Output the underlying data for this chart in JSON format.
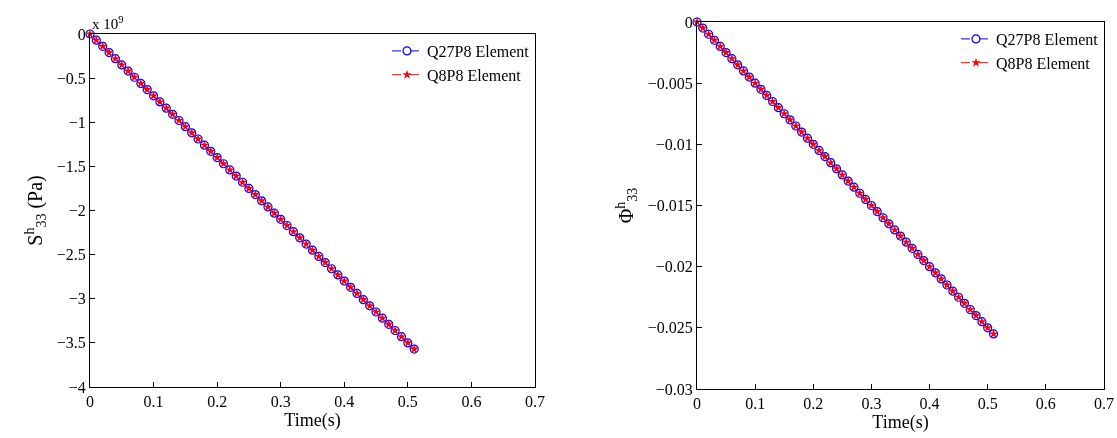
{
  "chart_data": [
    {
      "type": "line",
      "xlabel": "Time(s)",
      "ylabel": "S$^{h}$$_{33}$ (Pa)",
      "annotations": [
        "x 10$^{9}$"
      ],
      "x": [
        0,
        0.01,
        0.02,
        0.03,
        0.04,
        0.05,
        0.06,
        0.07,
        0.08,
        0.09,
        0.1,
        0.11,
        0.12,
        0.13,
        0.14,
        0.15,
        0.16,
        0.17,
        0.18,
        0.19,
        0.2,
        0.21,
        0.22,
        0.23,
        0.24,
        0.25,
        0.26,
        0.27,
        0.28,
        0.29,
        0.3,
        0.31,
        0.32,
        0.33,
        0.34,
        0.35,
        0.36,
        0.37,
        0.38,
        0.39,
        0.4,
        0.41,
        0.42,
        0.43,
        0.44,
        0.45,
        0.46,
        0.47,
        0.48,
        0.49,
        0.5,
        0.51
      ],
      "series": [
        {
          "name": "Q27P8 Element",
          "color": "#0000ff",
          "marker": "circle",
          "values": [
            0,
            -0.07,
            -0.14,
            -0.21,
            -0.28,
            -0.35,
            -0.42,
            -0.49,
            -0.56,
            -0.63,
            -0.7,
            -0.77,
            -0.84,
            -0.91,
            -0.98,
            -1.05,
            -1.12,
            -1.19,
            -1.26,
            -1.33,
            -1.4,
            -1.47,
            -1.54,
            -1.61,
            -1.68,
            -1.75,
            -1.82,
            -1.89,
            -1.96,
            -2.03,
            -2.1,
            -2.17,
            -2.24,
            -2.31,
            -2.38,
            -2.45,
            -2.52,
            -2.59,
            -2.66,
            -2.73,
            -2.8,
            -2.87,
            -2.94,
            -3.01,
            -3.08,
            -3.15,
            -3.22,
            -3.29,
            -3.36,
            -3.43,
            -3.5,
            -3.57
          ]
        },
        {
          "name": "Q8P8 Element",
          "color": "#ff0000",
          "marker": "star",
          "values": [
            0,
            -0.07,
            -0.14,
            -0.21,
            -0.28,
            -0.35,
            -0.42,
            -0.49,
            -0.56,
            -0.63,
            -0.7,
            -0.77,
            -0.84,
            -0.91,
            -0.98,
            -1.05,
            -1.12,
            -1.19,
            -1.26,
            -1.33,
            -1.4,
            -1.47,
            -1.54,
            -1.61,
            -1.68,
            -1.75,
            -1.82,
            -1.89,
            -1.96,
            -2.03,
            -2.1,
            -2.17,
            -2.24,
            -2.31,
            -2.38,
            -2.45,
            -2.52,
            -2.59,
            -2.66,
            -2.73,
            -2.8,
            -2.87,
            -2.94,
            -3.01,
            -3.08,
            -3.15,
            -3.22,
            -3.29,
            -3.36,
            -3.43,
            -3.5,
            -3.57
          ]
        }
      ],
      "xlim": [
        0,
        0.7
      ],
      "xticks": [
        0,
        0.1,
        0.2,
        0.3,
        0.4,
        0.5,
        0.6,
        0.7
      ],
      "ylim": [
        -4,
        0
      ],
      "yticks": [
        -4,
        -3.5,
        -3,
        -2.5,
        -2,
        -1.5,
        -1,
        -0.5,
        0
      ],
      "line_style": "dashed",
      "legend": "top right",
      "grid": false
    },
    {
      "type": "line",
      "xlabel": "Time(s)",
      "ylabel": "Φ$^{h}$$_{33}$",
      "x": [
        0,
        0.01,
        0.02,
        0.03,
        0.04,
        0.05,
        0.06,
        0.07,
        0.08,
        0.09,
        0.1,
        0.11,
        0.12,
        0.13,
        0.14,
        0.15,
        0.16,
        0.17,
        0.18,
        0.19,
        0.2,
        0.21,
        0.22,
        0.23,
        0.24,
        0.25,
        0.26,
        0.27,
        0.28,
        0.29,
        0.3,
        0.31,
        0.32,
        0.33,
        0.34,
        0.35,
        0.36,
        0.37,
        0.38,
        0.39,
        0.4,
        0.41,
        0.42,
        0.43,
        0.44,
        0.45,
        0.46,
        0.47,
        0.48,
        0.49,
        0.5,
        0.51
      ],
      "series": [
        {
          "name": "Q27P8 Element",
          "color": "#0000ff",
          "marker": "circle",
          "values": [
            0,
            -0.0005,
            -0.001,
            -0.0015,
            -0.002,
            -0.0025,
            -0.003,
            -0.0035,
            -0.004,
            -0.0045,
            -0.005,
            -0.0055,
            -0.006,
            -0.0065,
            -0.007,
            -0.0075,
            -0.008,
            -0.0085,
            -0.009,
            -0.0095,
            -0.01,
            -0.0105,
            -0.011,
            -0.0115,
            -0.012,
            -0.0125,
            -0.013,
            -0.0135,
            -0.014,
            -0.0145,
            -0.015,
            -0.0155,
            -0.016,
            -0.0165,
            -0.017,
            -0.0175,
            -0.018,
            -0.0185,
            -0.019,
            -0.0195,
            -0.02,
            -0.0205,
            -0.021,
            -0.0215,
            -0.022,
            -0.0225,
            -0.023,
            -0.0235,
            -0.024,
            -0.0245,
            -0.025,
            -0.0255
          ]
        },
        {
          "name": "Q8P8 Element",
          "color": "#ff0000",
          "marker": "star",
          "values": [
            0,
            -0.0005,
            -0.001,
            -0.0015,
            -0.002,
            -0.0025,
            -0.003,
            -0.0035,
            -0.004,
            -0.0045,
            -0.005,
            -0.0055,
            -0.006,
            -0.0065,
            -0.007,
            -0.0075,
            -0.008,
            -0.0085,
            -0.009,
            -0.0095,
            -0.01,
            -0.0105,
            -0.011,
            -0.0115,
            -0.012,
            -0.0125,
            -0.013,
            -0.0135,
            -0.014,
            -0.0145,
            -0.015,
            -0.0155,
            -0.016,
            -0.0165,
            -0.017,
            -0.0175,
            -0.018,
            -0.0185,
            -0.019,
            -0.0195,
            -0.02,
            -0.0205,
            -0.021,
            -0.0215,
            -0.022,
            -0.0225,
            -0.023,
            -0.0235,
            -0.024,
            -0.0245,
            -0.025,
            -0.0255
          ]
        }
      ],
      "xlim": [
        0,
        0.7
      ],
      "xticks": [
        0,
        0.1,
        0.2,
        0.3,
        0.4,
        0.5,
        0.6,
        0.7
      ],
      "ylim": [
        -0.03,
        0
      ],
      "yticks": [
        -0.03,
        -0.025,
        -0.02,
        -0.015,
        -0.01,
        -0.005,
        0
      ],
      "line_style": "dashed",
      "legend": "top right",
      "grid": false
    }
  ]
}
